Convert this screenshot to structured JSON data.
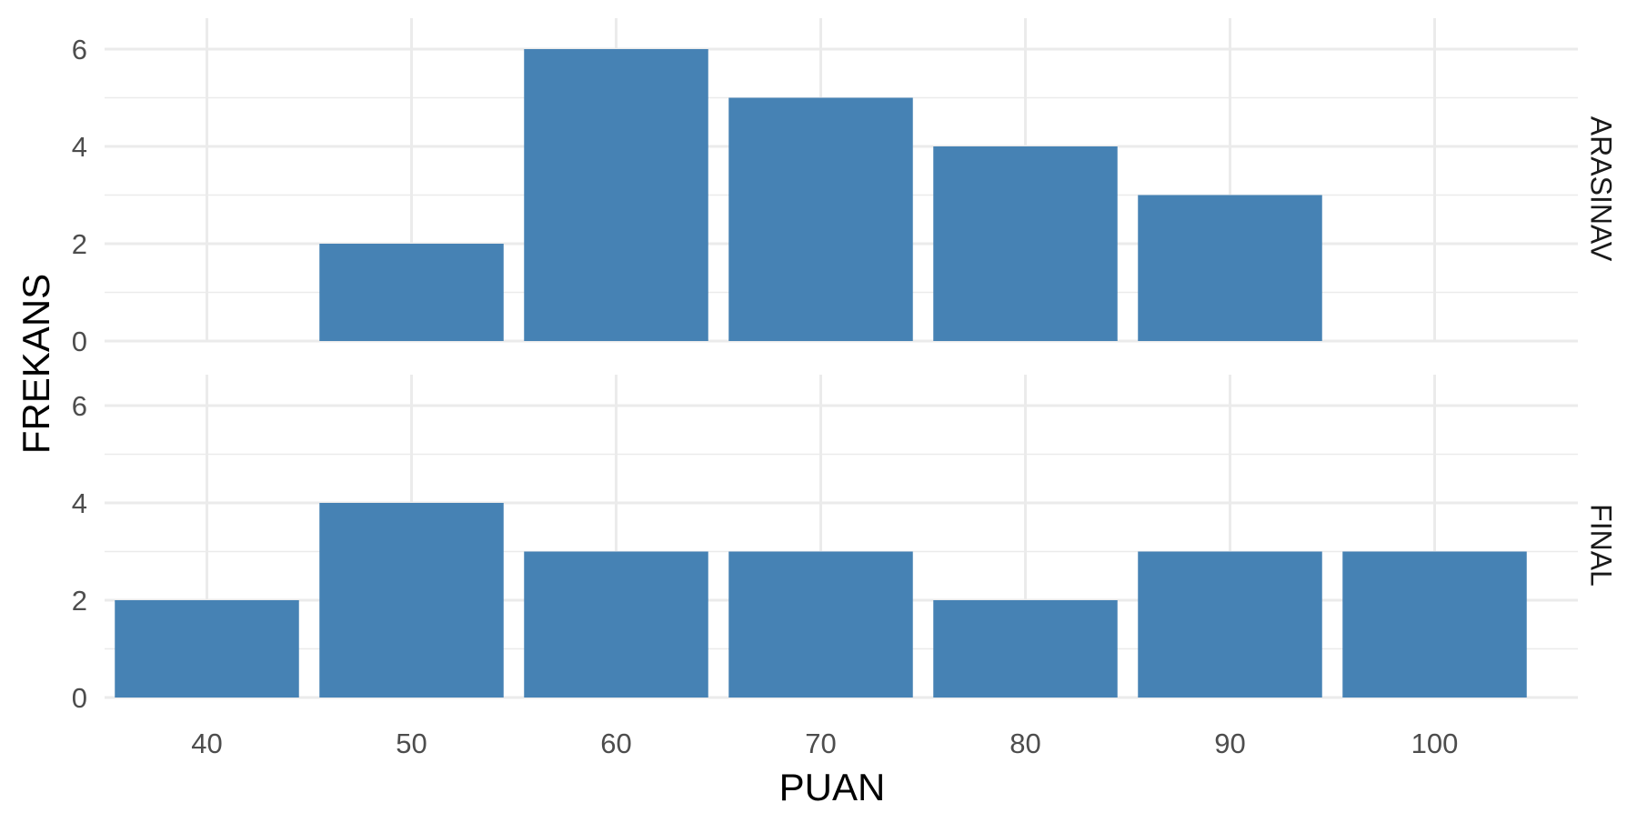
{
  "chart_data": {
    "type": "bar",
    "xlabel": "PUAN",
    "ylabel": "FREKANS",
    "x": [
      40,
      50,
      60,
      70,
      80,
      90,
      100
    ],
    "xlim": [
      35,
      107
    ],
    "x_ticks": [
      "40",
      "50",
      "60",
      "70",
      "80",
      "90",
      "100"
    ],
    "ylim": [
      0,
      6
    ],
    "y_ticks": [
      "0",
      "2",
      "4",
      "6"
    ],
    "bar_color": "#4682B4",
    "grid": true,
    "facets": [
      {
        "label": "ARASINAV",
        "values": [
          0,
          2,
          6,
          5,
          4,
          3,
          0
        ]
      },
      {
        "label": "FINAL",
        "values": [
          2,
          4,
          3,
          3,
          2,
          3,
          3
        ]
      }
    ]
  }
}
